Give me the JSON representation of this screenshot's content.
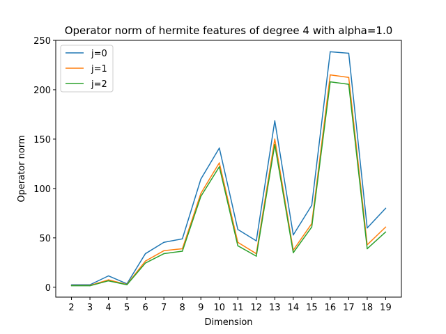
{
  "chart_data": {
    "type": "line",
    "title": "Operator norm of hermite features of degree 4 with alpha=1.0",
    "xlabel": "Dimension",
    "ylabel": "Operator norm",
    "x": [
      2,
      3,
      4,
      5,
      6,
      7,
      8,
      9,
      10,
      11,
      12,
      13,
      14,
      15,
      16,
      17,
      18,
      19
    ],
    "xlim": [
      1.15,
      19.85
    ],
    "ylim": [
      -10,
      250
    ],
    "yticks": [
      0,
      50,
      100,
      150,
      200,
      250
    ],
    "grid": false,
    "legend_position": "upper-left",
    "series": [
      {
        "name": "j=0",
        "color": "#1f77b4",
        "values": [
          2.5,
          2.5,
          11.5,
          3.5,
          34,
          45.5,
          49,
          109.5,
          141,
          58.5,
          47,
          168.5,
          53,
          83,
          238.5,
          237,
          60,
          80
        ]
      },
      {
        "name": "j=1",
        "color": "#ff7f0e",
        "values": [
          1.8,
          1.8,
          7.5,
          2.8,
          26.5,
          37,
          39,
          95,
          126,
          45.5,
          34,
          150,
          37.5,
          64.5,
          215,
          212.5,
          43,
          61
        ]
      },
      {
        "name": "j=2",
        "color": "#2ca02c",
        "values": [
          1.5,
          1.5,
          6.5,
          2.5,
          24.5,
          34,
          36.5,
          92,
          122,
          42,
          31.5,
          144.5,
          35,
          61,
          208,
          205.5,
          39,
          56
        ]
      }
    ]
  }
}
